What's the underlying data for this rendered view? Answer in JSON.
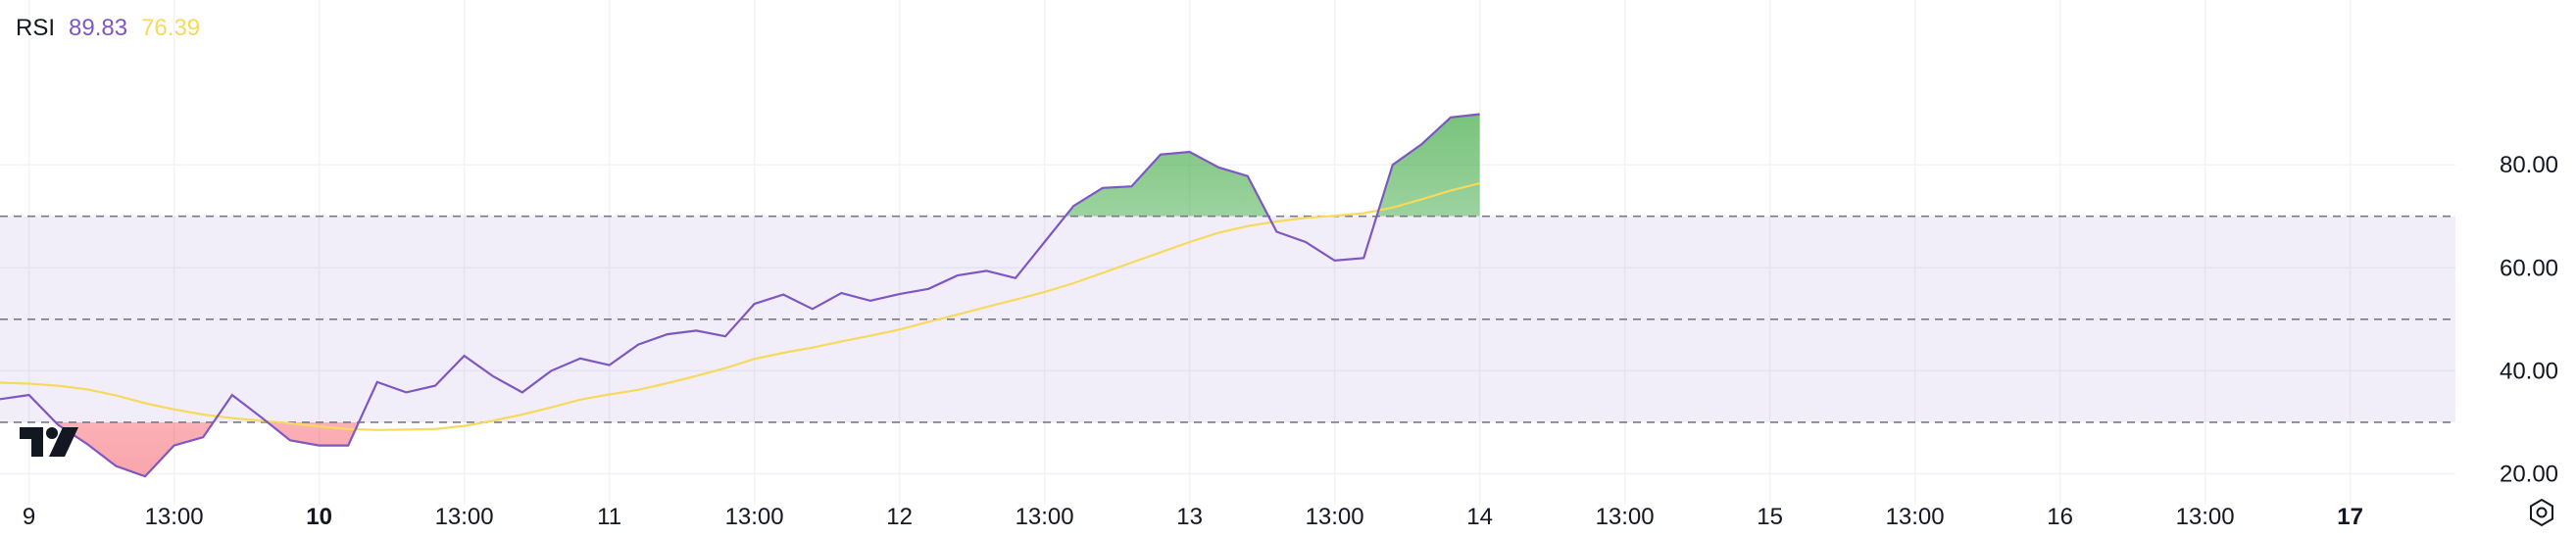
{
  "legend": {
    "name": "RSI",
    "rsi_value": "89.83",
    "ma_value": "76.39",
    "rsi_color": "#7E57C2",
    "ma_color": "#F7D95C"
  },
  "chart_data": {
    "type": "line",
    "title": "",
    "x_labels": [
      {
        "i": 1,
        "text": "9",
        "bold": false
      },
      {
        "i": 6,
        "text": "13:00",
        "bold": false
      },
      {
        "i": 11,
        "text": "10",
        "bold": true
      },
      {
        "i": 16,
        "text": "13:00",
        "bold": false
      },
      {
        "i": 21,
        "text": "11",
        "bold": false
      },
      {
        "i": 26,
        "text": "13:00",
        "bold": false
      },
      {
        "i": 31,
        "text": "12",
        "bold": false
      },
      {
        "i": 36,
        "text": "13:00",
        "bold": false
      },
      {
        "i": 41,
        "text": "13",
        "bold": false
      },
      {
        "i": 46,
        "text": "13:00",
        "bold": false
      },
      {
        "i": 51,
        "text": "14",
        "bold": false
      },
      {
        "i": 56,
        "text": "13:00",
        "bold": false
      },
      {
        "i": 61,
        "text": "15",
        "bold": false
      },
      {
        "i": 66,
        "text": "13:00",
        "bold": false
      },
      {
        "i": 71,
        "text": "16",
        "bold": false
      },
      {
        "i": 76,
        "text": "13:00",
        "bold": false
      },
      {
        "i": 81,
        "text": "17",
        "bold": true
      }
    ],
    "ylim": [
      14,
      112
    ],
    "y_ticks": [
      "20.00",
      "40.00",
      "60.00",
      "80.00"
    ],
    "levels": {
      "upper": 70,
      "middle": 50,
      "lower": 30
    },
    "series": [
      {
        "name": "RSI",
        "color": "#7E57C2",
        "values": [
          34.5,
          35.3,
          29.5,
          25.8,
          21.5,
          19.5,
          25.5,
          27.1,
          35.3,
          31.0,
          26.5,
          25.5,
          25.5,
          37.8,
          35.8,
          37.1,
          42.9,
          38.9,
          35.8,
          40.0,
          42.4,
          41.1,
          45.1,
          47.1,
          47.8,
          46.7,
          53.0,
          54.8,
          52.0,
          55.1,
          53.6,
          54.9,
          55.9,
          58.5,
          59.4,
          58.0,
          65.0,
          72.0,
          75.5,
          75.8,
          82.0,
          82.5,
          79.5,
          77.8,
          67.0,
          65.0,
          61.4,
          61.9,
          80.0,
          84.0,
          89.2,
          89.83
        ]
      },
      {
        "name": "MA",
        "color": "#F7D95C",
        "values": [
          37.7,
          37.5,
          37.1,
          36.4,
          35.2,
          33.7,
          32.5,
          31.5,
          30.8,
          30.3,
          29.8,
          29.2,
          28.7,
          28.5,
          28.6,
          28.7,
          29.3,
          30.3,
          31.5,
          32.9,
          34.4,
          35.4,
          36.3,
          37.6,
          39.0,
          40.5,
          42.3,
          43.5,
          44.5,
          45.7,
          46.8,
          48.0,
          49.5,
          50.9,
          52.4,
          53.8,
          55.3,
          57.0,
          59.0,
          61.0,
          63.0,
          65.0,
          66.8,
          68.1,
          69.0,
          69.7,
          70.1,
          70.6,
          71.7,
          73.3,
          75.0,
          76.39
        ]
      }
    ]
  }
}
